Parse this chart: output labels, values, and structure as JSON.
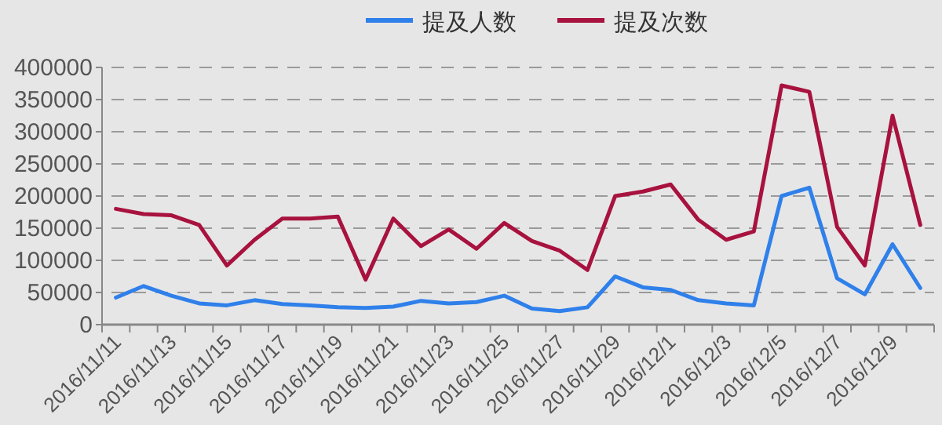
{
  "chart_data": {
    "type": "line",
    "categories": [
      "2016/11/11",
      null,
      "2016/11/13",
      null,
      "2016/11/15",
      null,
      "2016/11/17",
      null,
      "2016/11/19",
      null,
      "2016/11/21",
      null,
      "2016/11/23",
      null,
      "2016/11/25",
      null,
      "2016/11/27",
      null,
      "2016/11/29",
      null,
      "2016/12/1",
      null,
      "2016/12/3",
      null,
      "2016/12/5",
      null,
      "2016/12/7",
      null,
      "2016/12/9",
      null
    ],
    "series": [
      {
        "name": "提及人数",
        "color": "#2f80ea",
        "values": [
          42000,
          60000,
          45000,
          33000,
          30000,
          38000,
          32000,
          30000,
          27000,
          26000,
          28000,
          37000,
          33000,
          35000,
          45000,
          25000,
          21000,
          27000,
          75000,
          58000,
          54000,
          38000,
          33000,
          30000,
          200000,
          213000,
          72000,
          47000,
          125000,
          57000
        ]
      },
      {
        "name": "提及次数",
        "color": "#a8123e",
        "values": [
          180000,
          172000,
          170000,
          155000,
          92000,
          132000,
          165000,
          165000,
          168000,
          70000,
          165000,
          122000,
          148000,
          118000,
          158000,
          130000,
          115000,
          85000,
          200000,
          207000,
          218000,
          163000,
          132000,
          145000,
          372000,
          362000,
          152000,
          92000,
          325000,
          155000
        ]
      }
    ],
    "ylim": [
      0,
      400000
    ],
    "yticks": [
      0,
      50000,
      100000,
      150000,
      200000,
      250000,
      300000,
      350000,
      400000
    ],
    "grid": "y",
    "legend": "top",
    "line_style": "solid",
    "marker": "none"
  }
}
